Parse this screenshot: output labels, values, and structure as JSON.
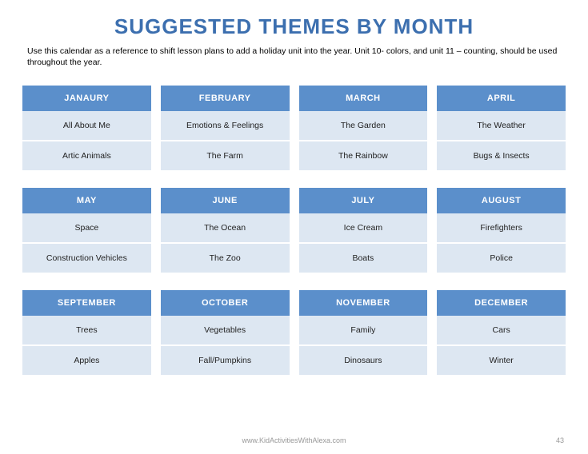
{
  "title": "SUGGESTED THEMES BY MONTH",
  "subtitle": "Use this calendar as a reference to shift lesson plans to add a holiday unit into the year. Unit 10- colors, and unit 11 – counting,  should be used throughout the year.",
  "colors": {
    "title_color": "#3C6FAF",
    "header_bg": "#5B8FCB",
    "cell_bg": "#DDE7F2",
    "text_dark": "#222222",
    "footer_text": "#999999"
  },
  "months": [
    {
      "name": "JANAURY",
      "themes": [
        "All About Me",
        "Artic Animals"
      ]
    },
    {
      "name": "FEBRUARY",
      "themes": [
        "Emotions & Feelings",
        "The Farm"
      ]
    },
    {
      "name": "MARCH",
      "themes": [
        "The Garden",
        "The Rainbow"
      ]
    },
    {
      "name": "APRIL",
      "themes": [
        "The Weather",
        "Bugs & Insects"
      ]
    },
    {
      "name": "MAY",
      "themes": [
        "Space",
        "Construction Vehicles"
      ]
    },
    {
      "name": "JUNE",
      "themes": [
        "The Ocean",
        "The Zoo"
      ]
    },
    {
      "name": "JULY",
      "themes": [
        "Ice Cream",
        "Boats"
      ]
    },
    {
      "name": "AUGUST",
      "themes": [
        "Firefighters",
        "Police"
      ]
    },
    {
      "name": "SEPTEMBER",
      "themes": [
        "Trees",
        "Apples"
      ]
    },
    {
      "name": "OCTOBER",
      "themes": [
        "Vegetables",
        "Fall/Pumpkins"
      ]
    },
    {
      "name": "NOVEMBER",
      "themes": [
        "Family",
        "Dinosaurs"
      ]
    },
    {
      "name": "DECEMBER",
      "themes": [
        "Cars",
        "Winter"
      ]
    }
  ],
  "footer": "www.KidActivitiesWithAlexa.com",
  "page_number": "43"
}
